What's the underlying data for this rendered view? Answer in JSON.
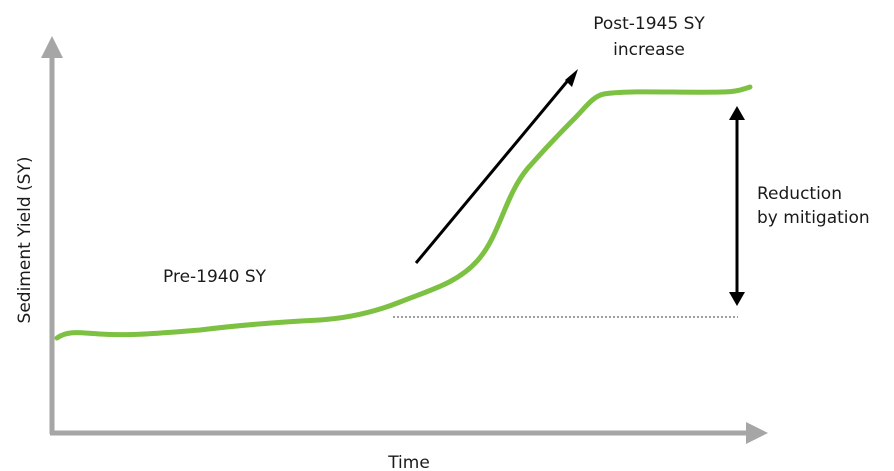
{
  "diagram": {
    "x_axis_label": "Time",
    "y_axis_label": "Sediment Yield (SY)",
    "annotations": {
      "pre": "Pre-1940 SY",
      "post_line1": "Post-1945 SY",
      "post_line2": "increase",
      "reduction_line1": "Reduction",
      "reduction_line2": "by mitigation"
    }
  },
  "colors": {
    "axis": "#a6a6a6",
    "curve": "#7dc142",
    "arrow": "#000000",
    "baseline": "#a0a0a0",
    "text": "#1a1a1a"
  }
}
